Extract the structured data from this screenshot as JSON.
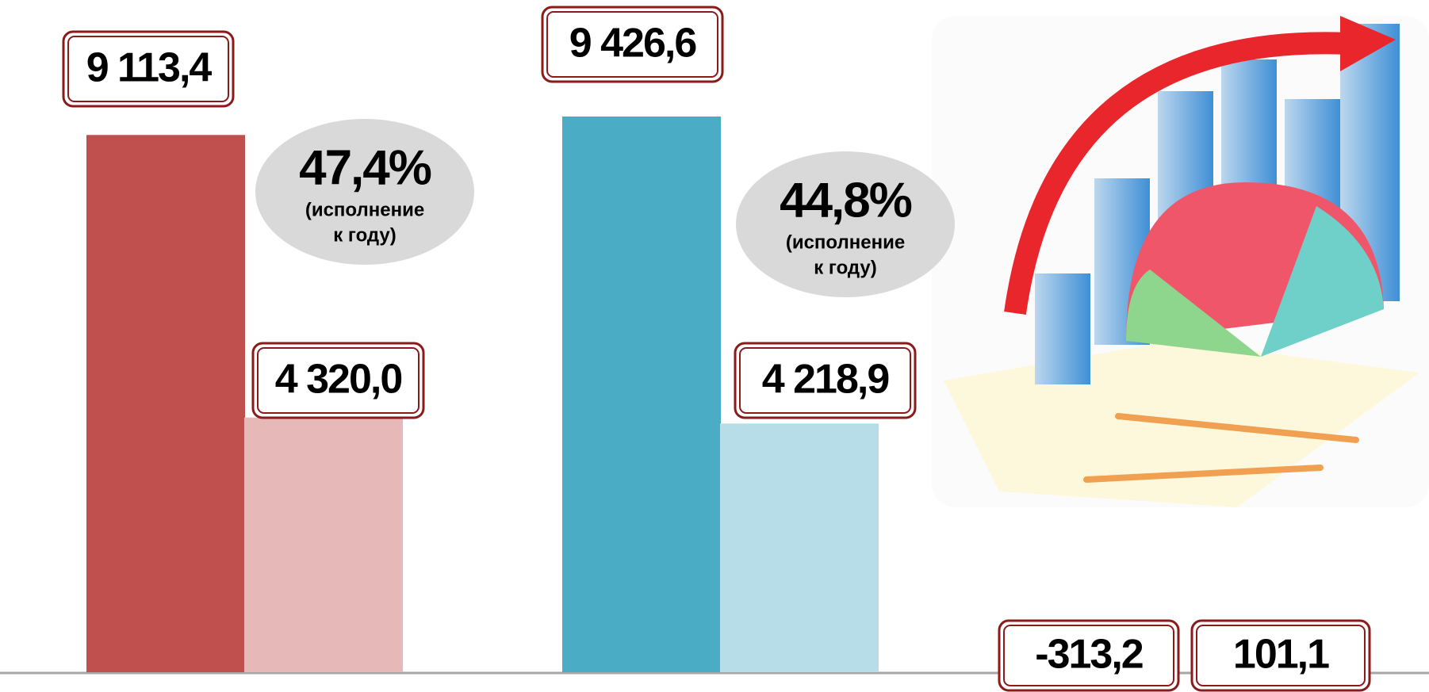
{
  "chart_data": {
    "type": "bar",
    "values": [
      9113.4,
      4320.0,
      9426.6,
      4218.9
    ],
    "value_labels": [
      "9 113,4",
      "4 320,0",
      "9 426,6",
      "4 218,9"
    ],
    "colors": [
      "#c0504d",
      "#e6b8b7",
      "#4bacc6",
      "#b7dde8"
    ],
    "annotations": [
      {
        "value": 47.4,
        "label": "47,4%",
        "note": [
          "(исполнение",
          "к году)"
        ]
      },
      {
        "value": 44.8,
        "label": "44,8%",
        "note": [
          "(исполнение",
          "к году)"
        ]
      }
    ],
    "extra": [
      {
        "value": -313.2,
        "label": "-313,2"
      },
      {
        "value": 101.1,
        "label": "101,1"
      }
    ]
  }
}
